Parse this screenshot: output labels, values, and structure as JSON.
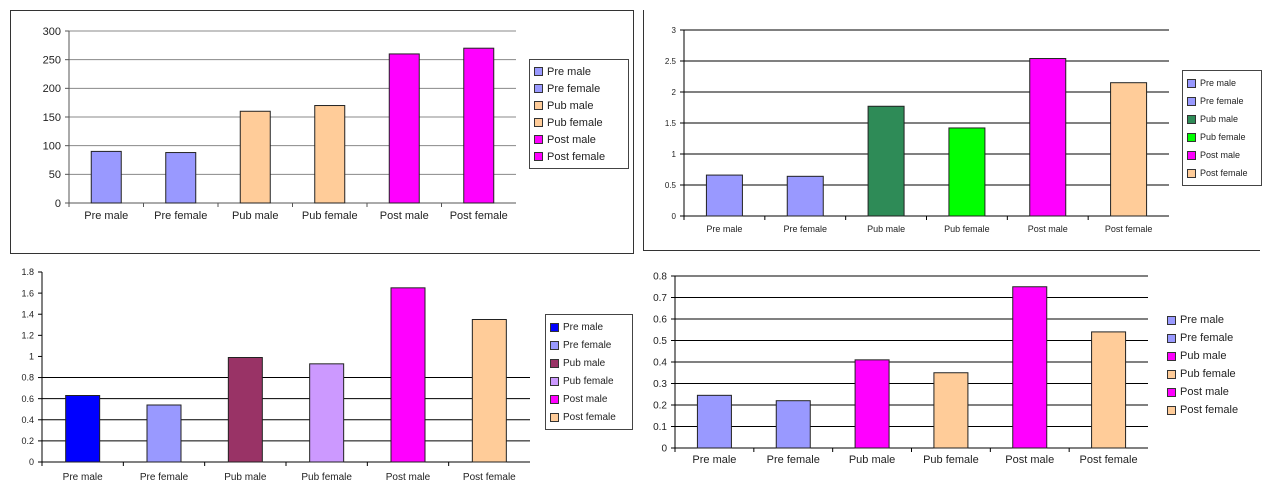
{
  "chart_data": [
    {
      "type": "bar",
      "categories": [
        "Pre male",
        "Pre female",
        "Pub male",
        "Pub female",
        "Post male",
        "Post female"
      ],
      "values": [
        90,
        88,
        160,
        170,
        260,
        270
      ],
      "colors": [
        "#9999ff",
        "#9999ff",
        "#ffcc99",
        "#ffcc99",
        "#ff00ff",
        "#ff00ff"
      ],
      "legend": [
        "Pre male",
        "Pre female",
        "Pub male",
        "Pub female",
        "Post male",
        "Post female"
      ],
      "yticks": [
        "0",
        "50",
        "100",
        "150",
        "200",
        "250",
        "300"
      ],
      "ylim": [
        0,
        300
      ],
      "grid": true,
      "legend_position": "right"
    },
    {
      "type": "bar",
      "categories": [
        "Pre male",
        "Pre female",
        "Pub male",
        "Pub female",
        "Post male",
        "Post female"
      ],
      "values": [
        0.66,
        0.64,
        1.77,
        1.42,
        2.54,
        2.15
      ],
      "colors": [
        "#9999ff",
        "#9999ff",
        "#2e8b57",
        "#00ff00",
        "#ff00ff",
        "#ffcc99"
      ],
      "legend": [
        "Pre male",
        "Pre female",
        "Pub male",
        "Pub female",
        "Post male",
        "Post female"
      ],
      "yticks": [
        "0",
        "0.5",
        "1",
        "1.5",
        "2",
        "2.5",
        "3"
      ],
      "ylim": [
        0,
        3
      ],
      "grid": true,
      "legend_position": "right"
    },
    {
      "type": "bar",
      "categories": [
        "Pre male",
        "Pre female",
        "Pub male",
        "Pub female",
        "Post male",
        "Post female"
      ],
      "values": [
        0.63,
        0.54,
        0.99,
        0.93,
        1.65,
        1.35
      ],
      "colors": [
        "#0000ff",
        "#9999ff",
        "#993366",
        "#cc99ff",
        "#ff00ff",
        "#ffcc99"
      ],
      "legend": [
        "Pre male",
        "Pre female",
        "Pub male",
        "Pub female",
        "Post male",
        "Post female"
      ],
      "yticks": [
        "0",
        "0.2",
        "0.4",
        "0.6",
        "0.8",
        "1",
        "1.2",
        "1.4",
        "1.6",
        "1.8"
      ],
      "ylim": [
        0,
        1.8
      ],
      "grid": true,
      "legend_position": "right"
    },
    {
      "type": "bar",
      "categories": [
        "Pre male",
        "Pre female",
        "Pub male",
        "Pub female",
        "Post male",
        "Post female"
      ],
      "values": [
        0.245,
        0.22,
        0.41,
        0.35,
        0.75,
        0.54
      ],
      "colors": [
        "#9999ff",
        "#9999ff",
        "#ff00ff",
        "#ffcc99",
        "#ff00ff",
        "#ffcc99"
      ],
      "legend": [
        "Pre male",
        "Pre female",
        "Pub male",
        "Pub female",
        "Post male",
        "Post female"
      ],
      "yticks": [
        "0",
        "0.1",
        "0.2",
        "0.3",
        "0.4",
        "0.5",
        "0.6",
        "0.7",
        "0.8"
      ],
      "ylim": [
        0,
        0.8
      ],
      "grid": true,
      "legend_position": "right"
    }
  ]
}
